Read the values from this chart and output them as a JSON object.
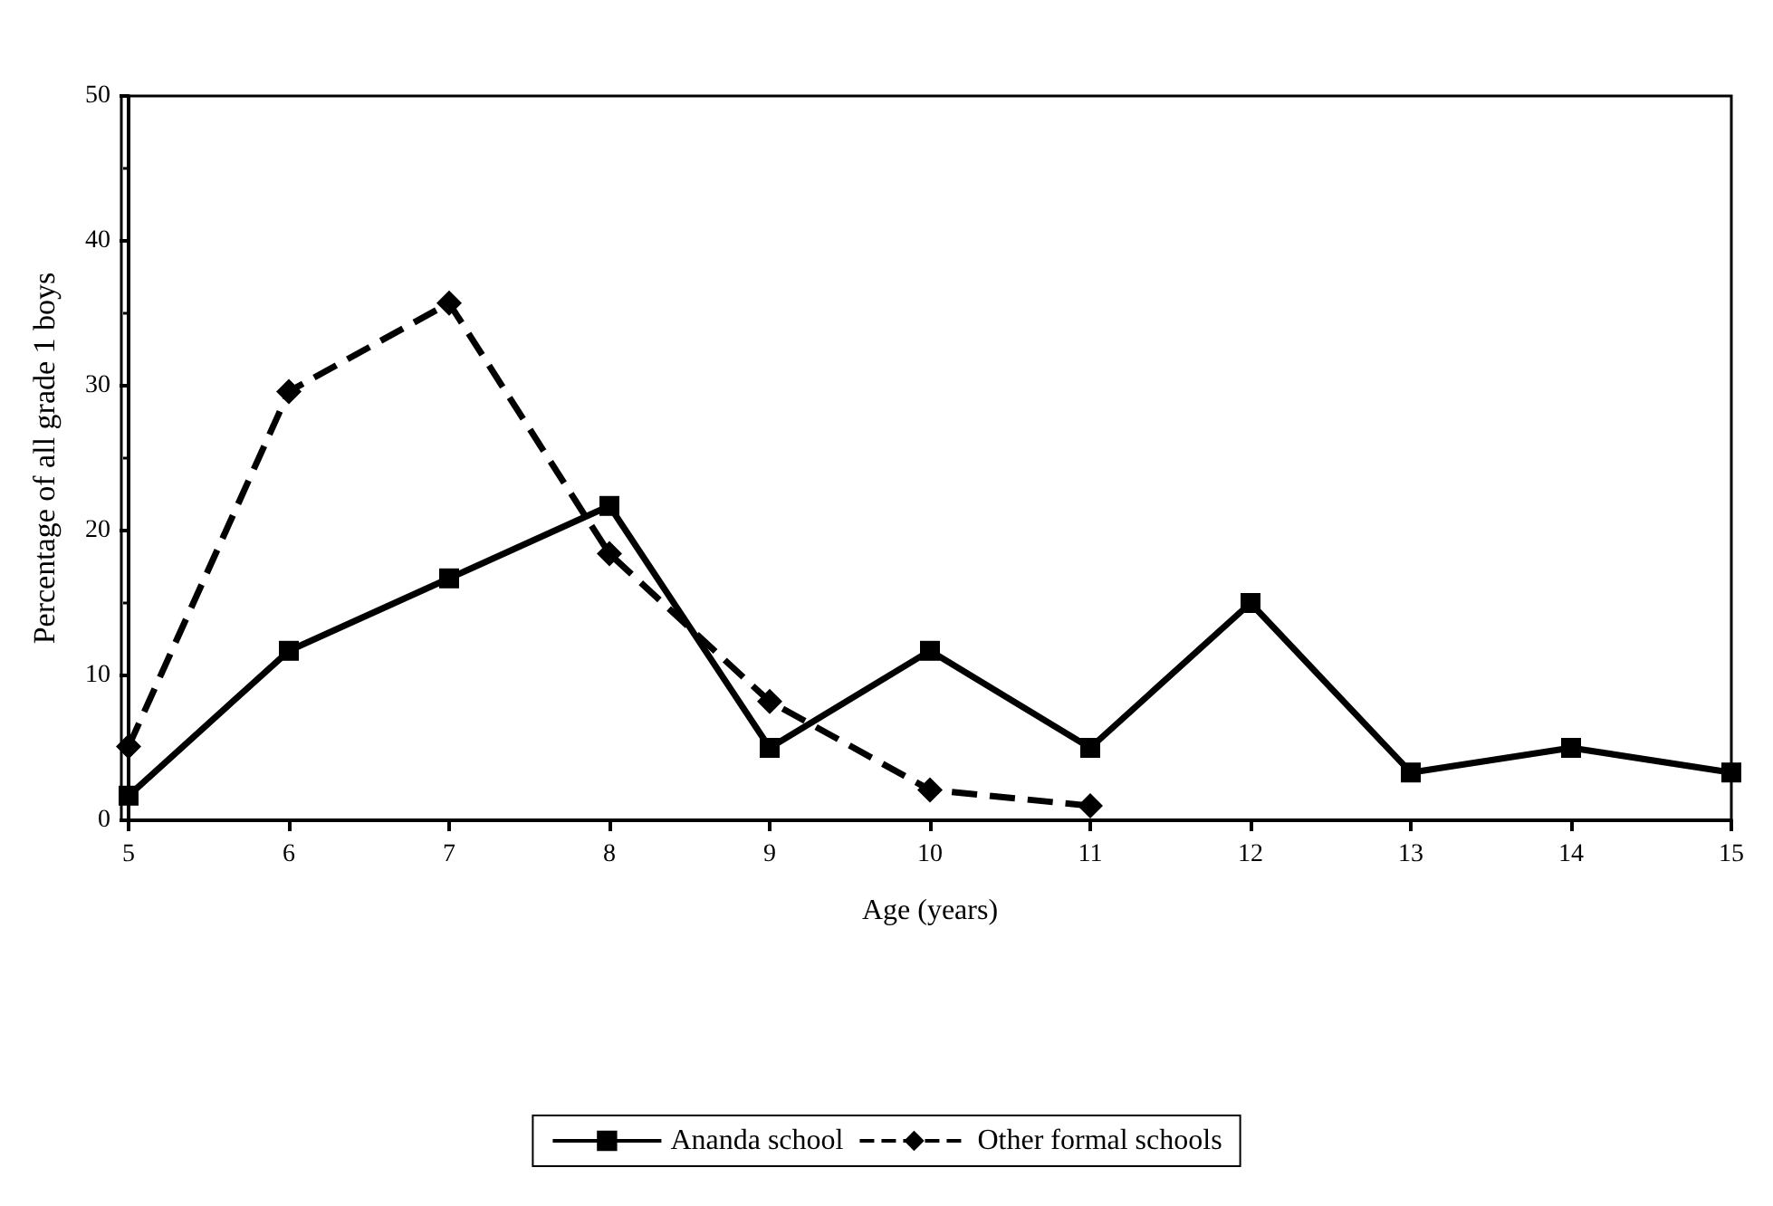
{
  "chart_data": {
    "type": "line",
    "xlabel": "Age (years)",
    "ylabel": "Percentage of all grade 1 boys",
    "x": [
      5,
      6,
      7,
      8,
      9,
      10,
      11,
      12,
      13,
      14,
      15
    ],
    "xlim": [
      5,
      15
    ],
    "xticks": [
      5,
      6,
      7,
      8,
      9,
      10,
      11,
      12,
      13,
      14,
      15
    ],
    "ylim": [
      0,
      50
    ],
    "yticks": [
      0,
      10,
      20,
      30,
      40,
      50
    ],
    "grid": false,
    "legend": "bottom",
    "series": [
      {
        "name": "Ananda school",
        "color": "#000000",
        "marker": "square",
        "line_style": "solid",
        "values": [
          1.7,
          11.7,
          16.7,
          21.7,
          5.0,
          11.7,
          5.0,
          15.0,
          3.3,
          5.0,
          3.3
        ]
      },
      {
        "name": "Other formal schools",
        "color": "#000000",
        "marker": "diamond",
        "line_style": "dashed",
        "values": [
          5.1,
          29.6,
          35.7,
          18.4,
          8.2,
          2.1,
          1.0,
          null,
          null,
          null,
          null
        ]
      }
    ]
  }
}
